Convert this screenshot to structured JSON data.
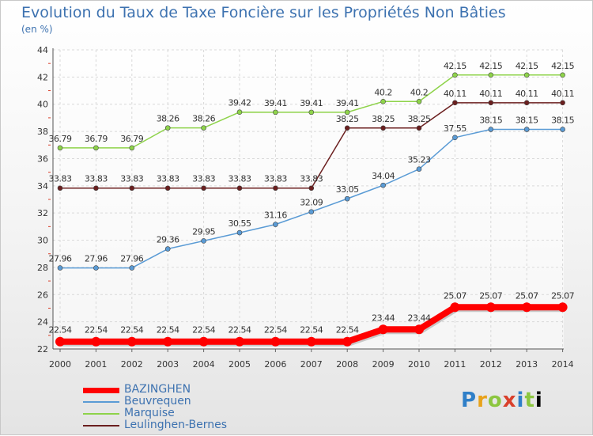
{
  "header": {
    "title": "Evolution du Taux de Taxe Foncière sur les Propriétés Non Bâties",
    "unit": "(en %)"
  },
  "logo": {
    "text": "Proxiti"
  },
  "chart_data": {
    "type": "line",
    "x": [
      "2000",
      "2001",
      "2002",
      "2003",
      "2004",
      "2005",
      "2006",
      "2007",
      "2008",
      "2009",
      "2010",
      "2011",
      "2012",
      "2013",
      "2014"
    ],
    "ylim": [
      22,
      44
    ],
    "yticks": [
      22,
      24,
      26,
      28,
      30,
      32,
      34,
      36,
      38,
      40,
      42,
      44
    ],
    "grid": true,
    "legend_position": "bottom-left",
    "series": [
      {
        "name": "BAZINGHEN",
        "color": "#ff0000",
        "values": [
          22.54,
          22.54,
          22.54,
          22.54,
          22.54,
          22.54,
          22.54,
          22.54,
          22.54,
          23.44,
          23.44,
          25.07,
          25.07,
          25.07,
          25.07
        ],
        "labels": [
          "22.54",
          "22.54",
          "22.54",
          "22.54",
          "22.54",
          "22.54",
          "22.54",
          "22.54",
          "22.54",
          "23.44",
          "23.44",
          "25.07",
          "25.07",
          "25.07",
          "25.07"
        ]
      },
      {
        "name": "Beuvrequen",
        "color": "#5a9bd5",
        "values": [
          27.96,
          27.96,
          27.96,
          29.36,
          29.95,
          30.55,
          31.16,
          32.09,
          33.05,
          34.04,
          35.23,
          37.55,
          38.15,
          38.15,
          38.15
        ],
        "labels": [
          "27.96",
          "27.96",
          "27.96",
          "29.36",
          "29.95",
          "30.55",
          "31.16",
          "32.09",
          "33.05",
          "34.04",
          "35.23",
          "37.55",
          "38.15",
          "38.15",
          "38.15"
        ]
      },
      {
        "name": "Marquise",
        "color": "#8ed34a",
        "values": [
          36.79,
          36.79,
          36.79,
          38.26,
          38.26,
          39.42,
          39.41,
          39.41,
          39.41,
          40.2,
          40.2,
          42.15,
          42.15,
          42.15,
          42.15
        ],
        "labels": [
          "36.79",
          "36.79",
          "36.79",
          "38.26",
          "38.26",
          "39.42",
          "39.41",
          "39.41",
          "39.41",
          "40.2",
          "40.2",
          "42.15",
          "42.15",
          "42.15",
          "42.15"
        ]
      },
      {
        "name": "Leulinghen-Bernes",
        "color": "#6b1f1f",
        "values": [
          33.83,
          33.83,
          33.83,
          33.83,
          33.83,
          33.83,
          33.83,
          33.83,
          38.25,
          38.25,
          38.25,
          40.11,
          40.11,
          40.11,
          40.11
        ],
        "labels": [
          "33.83",
          "33.83",
          "33.83",
          "33.83",
          "33.83",
          "33.83",
          "33.83",
          "33.83",
          "38.25",
          "38.25",
          "38.25",
          "40.11",
          "40.11",
          "40.11",
          "40.11"
        ]
      }
    ]
  }
}
